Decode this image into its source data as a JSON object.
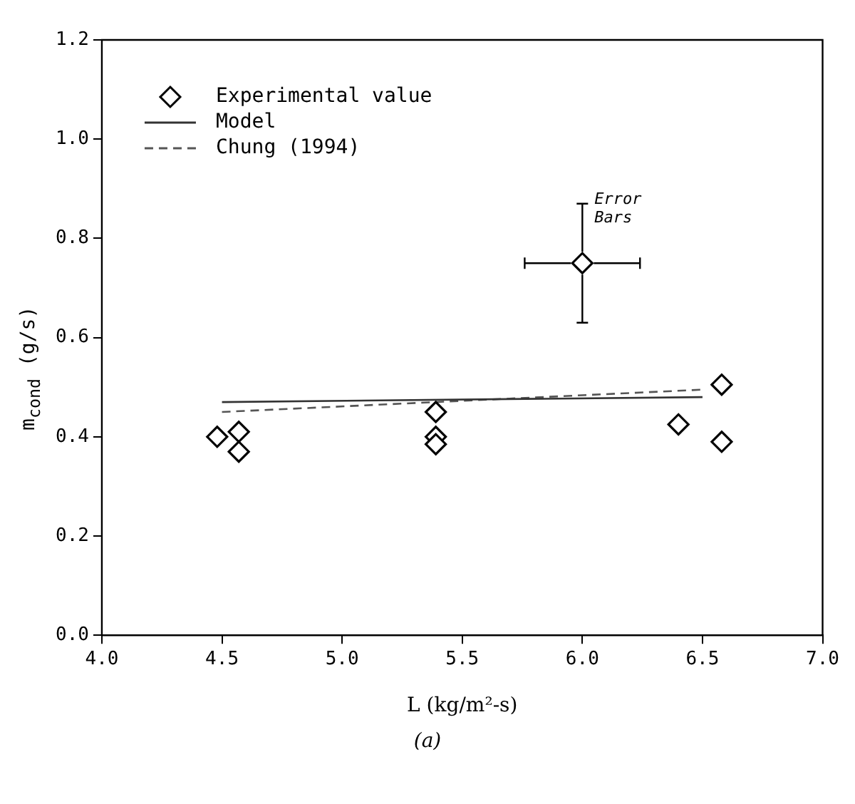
{
  "chart_data": {
    "type": "scatter",
    "xlabel": "L (kg/m²-s)",
    "ylabel": "m$_{cond}$ (g/s)",
    "xlim": [
      4.0,
      7.0
    ],
    "xticks": [
      {
        "value": 4,
        "label": "4.0"
      },
      {
        "value": 4.5,
        "label": "4.5"
      },
      {
        "value": 5,
        "label": "5.0"
      },
      {
        "value": 5.5,
        "label": "5.5"
      },
      {
        "value": 6,
        "label": "6.0"
      },
      {
        "value": 6.5,
        "label": "6.5"
      },
      {
        "value": 7,
        "label": "7.0"
      }
    ],
    "ylim": [
      0,
      1.2
    ],
    "yticks": [
      {
        "value": 0,
        "label": "0.0"
      },
      {
        "value": 0.2,
        "label": "0.2"
      },
      {
        "value": 0.4,
        "label": "0.4"
      },
      {
        "value": 0.6,
        "label": "0.6"
      },
      {
        "value": 0.8,
        "label": "0.8"
      },
      {
        "value": 1,
        "label": "1.0"
      },
      {
        "value": 1.2,
        "label": "1.2"
      }
    ],
    "series": [
      {
        "name": "Experimental value",
        "color": "#000000",
        "marker": "diamond",
        "x": [
          4.48,
          4.57,
          4.57,
          5.39,
          5.39,
          5.39,
          6.0,
          6.4,
          6.58,
          6.58
        ],
        "values": [
          0.4,
          0.41,
          0.37,
          0.45,
          0.4,
          0.385,
          0.75,
          0.425,
          0.505,
          0.39
        ],
        "errors": [
          null,
          null,
          null,
          null,
          null,
          null,
          0.12,
          null,
          null,
          null
        ],
        "xerrors": [
          null,
          null,
          null,
          null,
          null,
          null,
          0.24,
          null,
          null,
          null
        ]
      },
      {
        "name": "Model",
        "type": "line",
        "color": "#333333",
        "line_style": "solid",
        "marker": "none",
        "x": [
          4.5,
          6.5
        ],
        "values": [
          0.47,
          0.48
        ]
      },
      {
        "name": "Chung (1994)",
        "type": "line",
        "color": "#555555",
        "line_style": "dashed",
        "marker": "none",
        "x": [
          4.5,
          6.5
        ],
        "values": [
          0.45,
          0.495
        ]
      }
    ],
    "annotations": [
      {
        "text": "Error Bars",
        "x": 6.05,
        "y": 0.87
      },
      "(a)"
    ],
    "legend": "top left",
    "grid": false
  }
}
